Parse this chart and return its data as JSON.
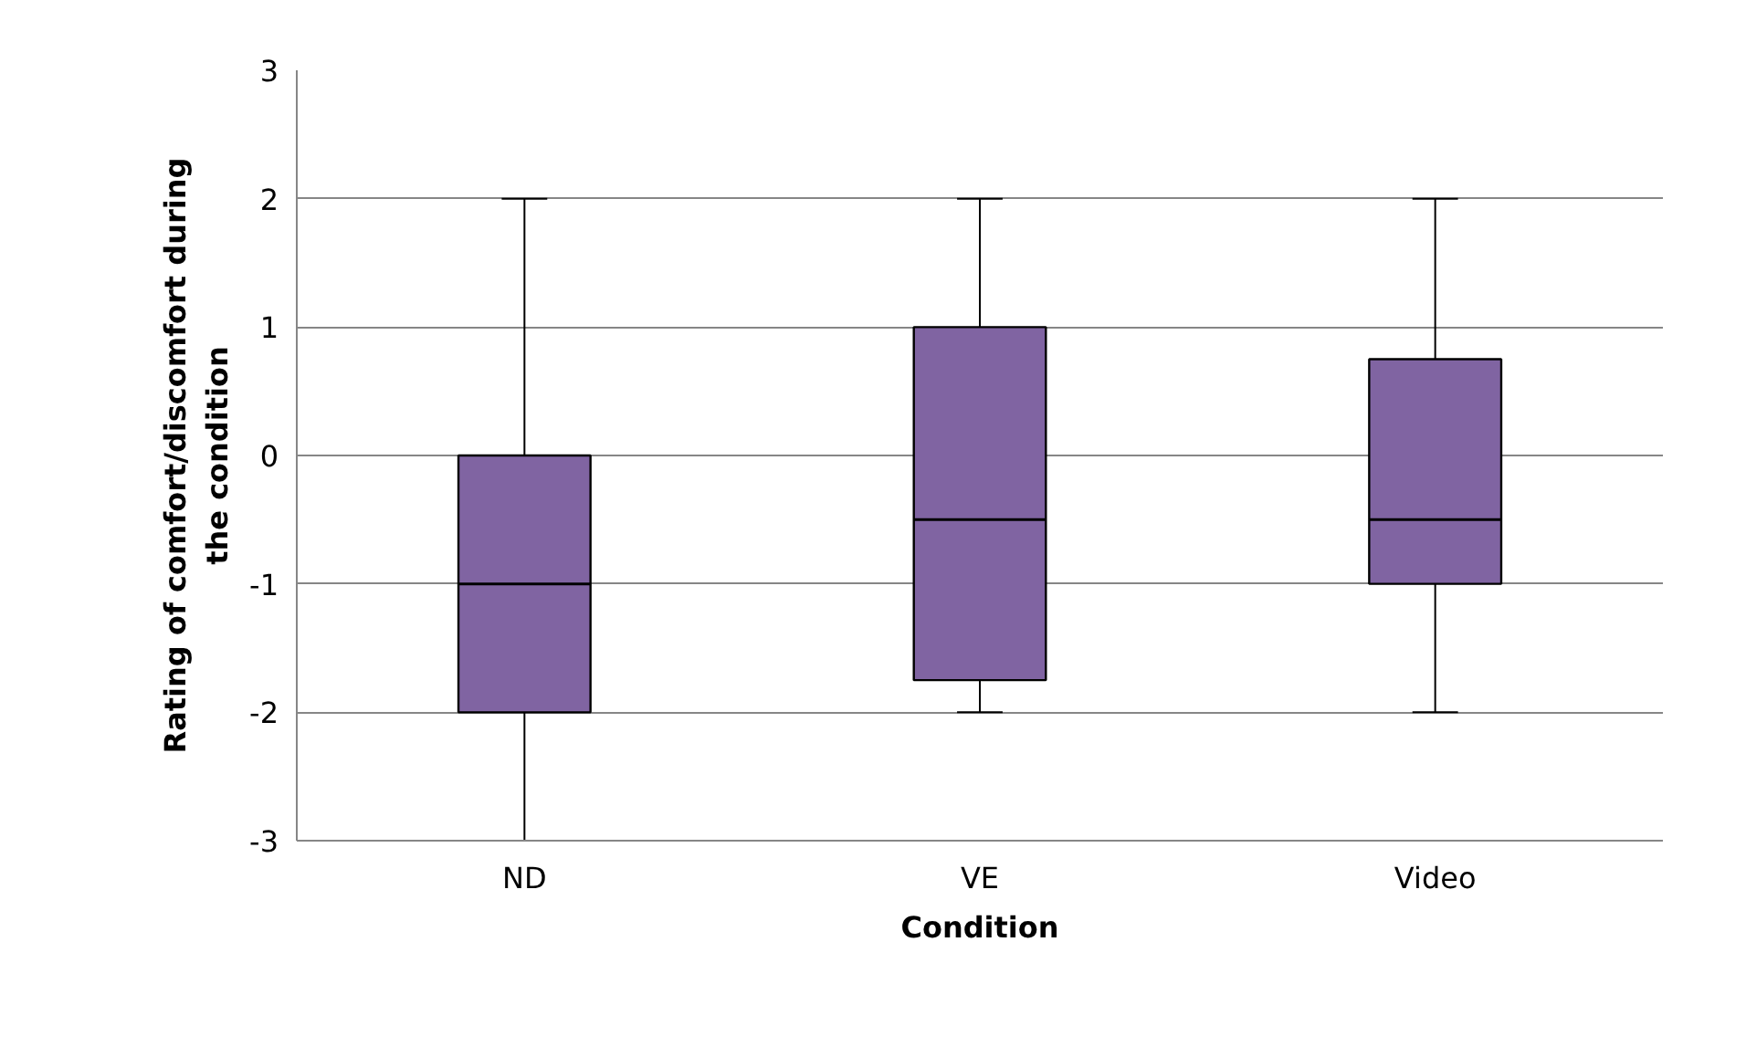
{
  "chart_data": {
    "type": "box",
    "xlabel": "Condition",
    "ylabel": "Rating of comfort/discomfort during the condition",
    "categories": [
      "ND",
      "VE",
      "Video"
    ],
    "color": "#8064a2",
    "boxes": [
      {
        "low": -3,
        "q1": -2,
        "median": -1,
        "q3": 0,
        "high": 2
      },
      {
        "low": -2,
        "q1": -1.75,
        "median": -0.5,
        "q3": 1,
        "high": 2
      },
      {
        "low": -2,
        "q1": -1,
        "median": -0.5,
        "q3": 0.75,
        "high": 2
      }
    ],
    "ylim": [
      -3,
      3
    ],
    "yticks": [
      -3,
      -2,
      -1,
      0,
      1,
      2,
      3
    ],
    "grid": "y"
  }
}
